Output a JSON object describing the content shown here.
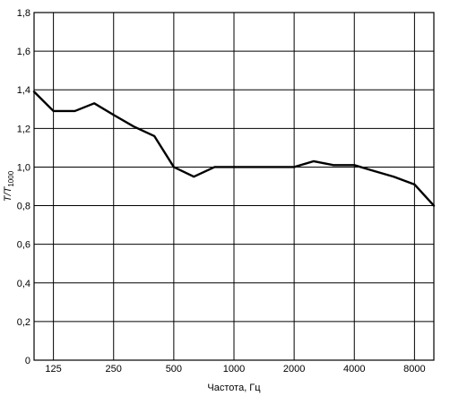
{
  "chart_data": {
    "type": "line",
    "title": "",
    "xlabel": "Частота, Гц",
    "ylabel": {
      "main": "T/T",
      "sub": "1000"
    },
    "x_scale": "log2",
    "xlim": [
      100,
      10000
    ],
    "ylim": [
      0,
      1.8
    ],
    "grid": true,
    "y_ticks": [
      "0",
      "0,2",
      "0,4",
      "0,6",
      "0,8",
      "1,0",
      "1,2",
      "1,4",
      "1,6",
      "1,8"
    ],
    "x_grid": [
      125,
      250,
      500,
      1000,
      2000,
      4000,
      8000
    ],
    "x_tick_labels": [
      {
        "value": 125,
        "label": "125"
      },
      {
        "value": 250,
        "label": "250"
      },
      {
        "value": 500,
        "label": "500"
      },
      {
        "value": 1000,
        "label": "1000"
      },
      {
        "value": 2000,
        "label": "2000"
      },
      {
        "value": 4000,
        "label": "4000"
      },
      {
        "value": 8000,
        "label": "8000"
      }
    ],
    "series": [
      {
        "x": [
          100,
          125,
          160,
          200,
          250,
          315,
          400,
          500,
          630,
          800,
          1000,
          1250,
          1600,
          2000,
          2500,
          3150,
          4000,
          5000,
          6300,
          8000,
          10000
        ],
        "y": [
          1.39,
          1.29,
          1.29,
          1.33,
          1.27,
          1.21,
          1.16,
          1.0,
          0.95,
          1.0,
          1.0,
          1.0,
          1.0,
          1.0,
          1.03,
          1.01,
          1.01,
          0.98,
          0.95,
          0.91,
          0.8
        ]
      }
    ]
  }
}
